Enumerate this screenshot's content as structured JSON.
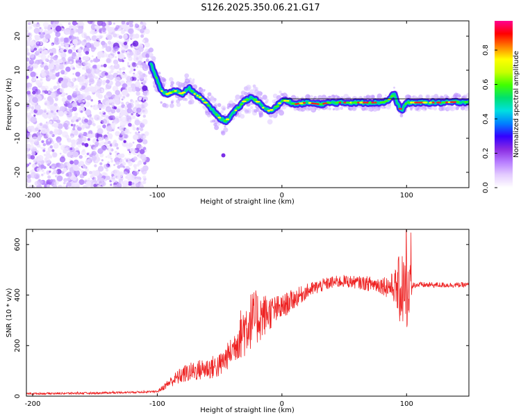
{
  "title": "S126.2025.350.06.21.G17",
  "chart_data": [
    {
      "type": "heatmap",
      "name": "spectrogram",
      "xlabel": "Height of straight line (km)",
      "ylabel": "Frequency (Hz)",
      "xlim": [
        -205,
        150
      ],
      "ylim": [
        -24.5,
        24.5
      ],
      "xticks": [
        -200,
        -100,
        0,
        100
      ],
      "yticks": [
        -20,
        -10,
        0,
        10,
        20
      ],
      "colorbar": {
        "label": "Normalized spectral amplitude",
        "range": [
          0,
          0.97
        ],
        "ticks": [
          "0.0",
          "0.2",
          "0.4",
          "0.6",
          "0.8"
        ],
        "tick_values": [
          0.0,
          0.2,
          0.4,
          0.6,
          0.8
        ],
        "colors": [
          "#ffffff",
          "#e4ccff",
          "#b77dff",
          "#8a2be2",
          "#3300ff",
          "#0080ff",
          "#00e0e0",
          "#00e070",
          "#40ff00",
          "#c8ff00",
          "#ffff00",
          "#ff8000",
          "#ff0000",
          "#ff0090"
        ]
      },
      "ridge": {
        "x": [
          -105,
          -97,
          -92,
          -85,
          -80,
          -75,
          -70,
          -65,
          -60,
          -55,
          -50,
          -45,
          -40,
          -35,
          -30,
          -25,
          -20,
          -15,
          -10,
          -5,
          0,
          5,
          10,
          20,
          30,
          40,
          50,
          60,
          70,
          80,
          85,
          90,
          93,
          96,
          100,
          110,
          120,
          130,
          140,
          150
        ],
        "y": [
          12,
          4,
          3,
          4,
          3,
          5,
          3,
          2,
          0,
          -2,
          -4,
          -5,
          -3,
          -1,
          1,
          2,
          1,
          -1,
          -2,
          -1,
          1,
          1,
          0,
          0.5,
          0,
          0.5,
          0.5,
          0.5,
          0.5,
          0.5,
          1,
          3,
          0,
          -2,
          0.5,
          0.5,
          0.5,
          0.5,
          0.7,
          0.7
        ]
      }
    },
    {
      "type": "line",
      "name": "snr",
      "xlabel": "Height of straight line (km)",
      "ylabel": "SNR (10 * v/v)",
      "xlim": [
        -205,
        150
      ],
      "ylim": [
        0,
        660
      ],
      "xticks": [
        -200,
        -100,
        0,
        100
      ],
      "yticks": [
        0,
        200,
        400,
        600
      ],
      "color": "#ee2222",
      "envelope": {
        "x": [
          -205,
          -150,
          -100,
          -95,
          -90,
          -80,
          -70,
          -60,
          -50,
          -45,
          -40,
          -35,
          -30,
          -25,
          -20,
          -15,
          -10,
          -5,
          0,
          5,
          10,
          15,
          20,
          25,
          30,
          40,
          50,
          60,
          70,
          80,
          90,
          100,
          103,
          110,
          120,
          130,
          140,
          150
        ],
        "y": [
          10,
          12,
          18,
          35,
          55,
          85,
          100,
          110,
          120,
          150,
          180,
          230,
          270,
          300,
          310,
          320,
          330,
          340,
          350,
          370,
          385,
          400,
          415,
          425,
          435,
          450,
          455,
          450,
          445,
          440,
          430,
          420,
          440,
          440,
          440,
          440,
          440,
          440
        ]
      },
      "noise": {
        "x": [
          -205,
          -100,
          -95,
          -80,
          -60,
          -40,
          -30,
          -20,
          -10,
          0,
          20,
          40,
          60,
          80,
          90,
          95,
          100,
          103,
          105,
          150
        ],
        "amp": [
          4,
          4,
          12,
          35,
          45,
          55,
          120,
          110,
          70,
          50,
          30,
          25,
          25,
          35,
          60,
          150,
          160,
          90,
          12,
          10
        ]
      }
    }
  ]
}
